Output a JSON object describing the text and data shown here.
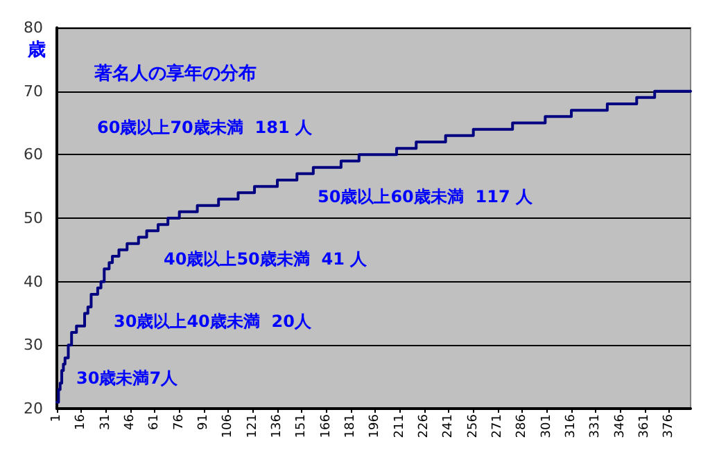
{
  "chart_data": {
    "type": "step",
    "title": "著名人の享年の分布",
    "ylabel": "歳",
    "x": [
      1,
      2,
      3,
      4,
      5,
      6,
      8,
      10,
      13,
      18,
      20,
      22,
      26,
      28,
      30,
      33,
      35,
      39,
      44,
      51,
      56,
      63,
      69,
      76,
      87,
      100,
      112,
      122,
      136,
      148,
      158,
      175,
      186,
      209,
      221,
      239,
      256,
      280,
      300,
      316,
      338,
      356,
      367,
      389
    ],
    "series": [
      {
        "color": "#000080",
        "values": [
          21,
          23,
          24,
          26,
          27,
          28,
          30,
          32,
          33,
          35,
          36,
          38,
          39,
          40,
          42,
          43,
          44,
          45,
          46,
          47,
          48,
          49,
          50,
          51,
          52,
          53,
          54,
          55,
          56,
          57,
          58,
          59,
          60,
          61,
          62,
          63,
          64,
          65,
          66,
          67,
          68,
          69,
          70,
          70
        ]
      }
    ],
    "xlim": [
      1,
      389
    ],
    "xticks": [
      1,
      16,
      31,
      46,
      61,
      76,
      91,
      106,
      121,
      136,
      151,
      166,
      181,
      196,
      211,
      226,
      241,
      256,
      271,
      286,
      301,
      316,
      331,
      346,
      361,
      376
    ],
    "ylim": [
      20,
      80
    ],
    "yticks": [
      20,
      30,
      40,
      50,
      60,
      70,
      80
    ],
    "annotations": [
      "60歳以上70歳未満  181 人",
      "50歳以上60歳未満  117 人",
      "40歳以上50歳未満  41 人",
      "30歳以上40歳未満  20人",
      "30歳未満7人"
    ],
    "grid": "y",
    "marker": "none",
    "line_style": "solid"
  }
}
